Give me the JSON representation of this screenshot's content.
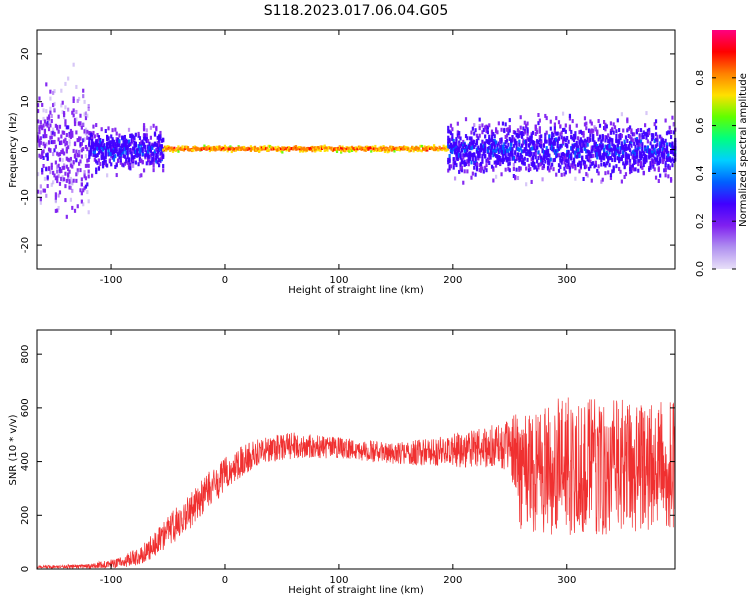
{
  "title": "S118.2023.017.06.04.G05",
  "colors": {
    "snr_line": "#f03030",
    "background": "#ffffff",
    "spectro_bg": "#ffffff",
    "frame": "#000000",
    "colormap": [
      "#e8e0f8",
      "#b090f0",
      "#8020f0",
      "#4000ff",
      "#0060ff",
      "#00d0ff",
      "#00ff80",
      "#60ff00",
      "#ffe000",
      "#ff8000",
      "#ff0000",
      "#ff0080"
    ]
  },
  "chart_data": [
    {
      "type": "heatmap",
      "name": "spectrogram",
      "xlabel": "Height of straight line (km)",
      "ylabel": "Frequency (Hz)",
      "xlim": [
        -165,
        395
      ],
      "ylim": [
        -25,
        25
      ],
      "xticks": [
        -100,
        0,
        100,
        200,
        300
      ],
      "yticks": [
        -20,
        -10,
        0,
        10,
        20
      ],
      "colorbar": {
        "label": "Normalized spectral amplitude",
        "range": [
          0.0,
          1.0
        ],
        "ticks": [
          "0.0",
          "0.2",
          "0.4",
          "0.6",
          "0.8"
        ]
      },
      "features": [
        {
          "x_range": [
            -165,
            -120
          ],
          "freq_spread": 25,
          "amplitude": 0.2
        },
        {
          "x_range": [
            -120,
            -55
          ],
          "freq_spread": 8,
          "amplitude": 0.3
        },
        {
          "x_range": [
            -55,
            195
          ],
          "freq_spread": 1,
          "amplitude": 0.85
        },
        {
          "x_range": [
            195,
            395
          ],
          "freq_spread": 10,
          "amplitude": 0.3
        }
      ]
    },
    {
      "type": "line",
      "name": "snr",
      "xlabel": "Height of straight line (km)",
      "ylabel": "SNR (10 * v/v)",
      "xlim": [
        -165,
        395
      ],
      "ylim": [
        0,
        890
      ],
      "xticks": [
        -100,
        0,
        100,
        200,
        300
      ],
      "yticks": [
        0,
        200,
        400,
        600,
        800
      ],
      "envelope": {
        "x": [
          -165,
          -120,
          -90,
          -70,
          -50,
          -30,
          -10,
          10,
          30,
          60,
          100,
          150,
          195,
          250,
          260,
          300,
          350,
          395
        ],
        "mean": [
          8,
          10,
          25,
          60,
          140,
          220,
          310,
          390,
          440,
          460,
          450,
          430,
          440,
          460,
          380,
          380,
          380,
          380
        ],
        "spread": [
          5,
          8,
          20,
          40,
          60,
          70,
          70,
          60,
          50,
          50,
          40,
          40,
          60,
          90,
          240,
          260,
          250,
          240
        ]
      }
    }
  ]
}
